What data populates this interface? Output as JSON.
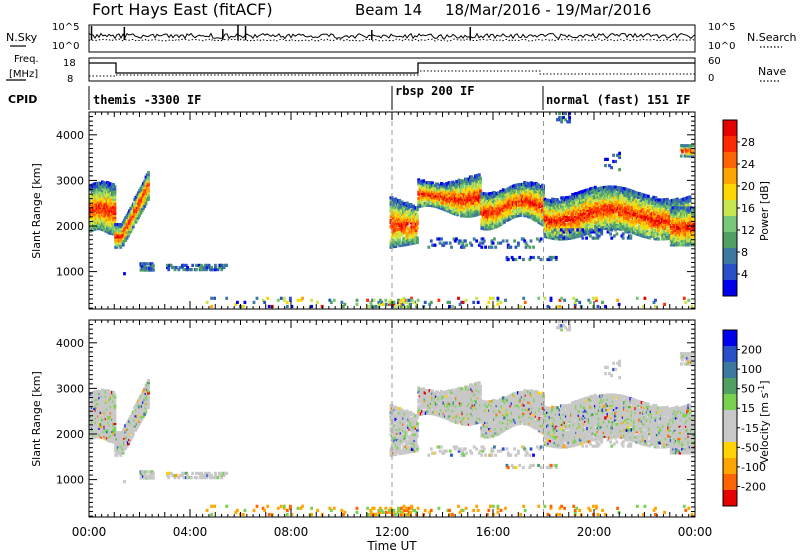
{
  "header": {
    "site": "Fort Hays East (fitACF)",
    "beam": "Beam 14",
    "dates": "18/Mar/2016 - 19/Mar/2016"
  },
  "panels": {
    "nsky": {
      "left_label": "N.Sky",
      "right_label": "N.Search",
      "left_ticks": [
        "10^5",
        "10^0"
      ],
      "right_ticks": [
        "10^5",
        "10^0"
      ]
    },
    "freq": {
      "left_label_1": "Freq.",
      "left_label_2": "[MHz]",
      "right_label": "Nave",
      "left_ticks": [
        "18",
        "8"
      ],
      "right_ticks": [
        "60",
        "0"
      ]
    },
    "cpid": {
      "label": "CPID",
      "segments": [
        {
          "name": "themis -3300 IF",
          "start_hour": 0
        },
        {
          "name": "rbsp 200 IF",
          "start_hour": 12
        },
        {
          "name": "normal (fast) 151 IF",
          "start_hour": 18
        }
      ]
    }
  },
  "colors": {
    "power": [
      "#0000ee",
      "#2850c8",
      "#3c78a0",
      "#50a064",
      "#78c878",
      "#c8e650",
      "#ffd700",
      "#ffa500",
      "#ff6400",
      "#ff2800",
      "#e60000"
    ],
    "velocity": [
      "#e60000",
      "#ff6400",
      "#ffa500",
      "#ffd200",
      "#c8c8c8",
      "#c8c8c8",
      "#78d250",
      "#50a064",
      "#3c78a0",
      "#2850c8",
      "#0000ee"
    ]
  },
  "chart_data": [
    {
      "type": "heatmap",
      "title": "Power",
      "xlabel": "",
      "ylabel": "Slant Range [km]",
      "x_ticks": [
        "00:00",
        "04:00",
        "08:00",
        "12:00",
        "16:00",
        "20:00",
        "00:00"
      ],
      "x_range_hours": [
        0,
        24
      ],
      "y_ticks": [
        "1000",
        "2000",
        "3000",
        "4000"
      ],
      "y_range_km": [
        180,
        4500
      ],
      "colorbar_label": "Power [dB]",
      "colorbar_ticks": [
        "4",
        "8",
        "12",
        "16",
        "20",
        "24",
        "28"
      ],
      "colorbar_range": [
        0,
        30
      ]
    },
    {
      "type": "heatmap",
      "title": "Velocity",
      "xlabel": "Time UT",
      "ylabel": "Slant Range [km]",
      "x_ticks": [
        "00:00",
        "04:00",
        "08:00",
        "12:00",
        "16:00",
        "20:00",
        "00:00"
      ],
      "x_range_hours": [
        0,
        24
      ],
      "y_ticks": [
        "1000",
        "2000",
        "3000",
        "4000"
      ],
      "y_range_km": [
        180,
        4500
      ],
      "colorbar_label": "Velocity [m s^-1]",
      "colorbar_ticks": [
        "200",
        "100",
        "50",
        "15",
        "-15",
        "-50",
        "-100",
        "-200"
      ],
      "colorbar_range": [
        -250,
        250
      ]
    }
  ]
}
